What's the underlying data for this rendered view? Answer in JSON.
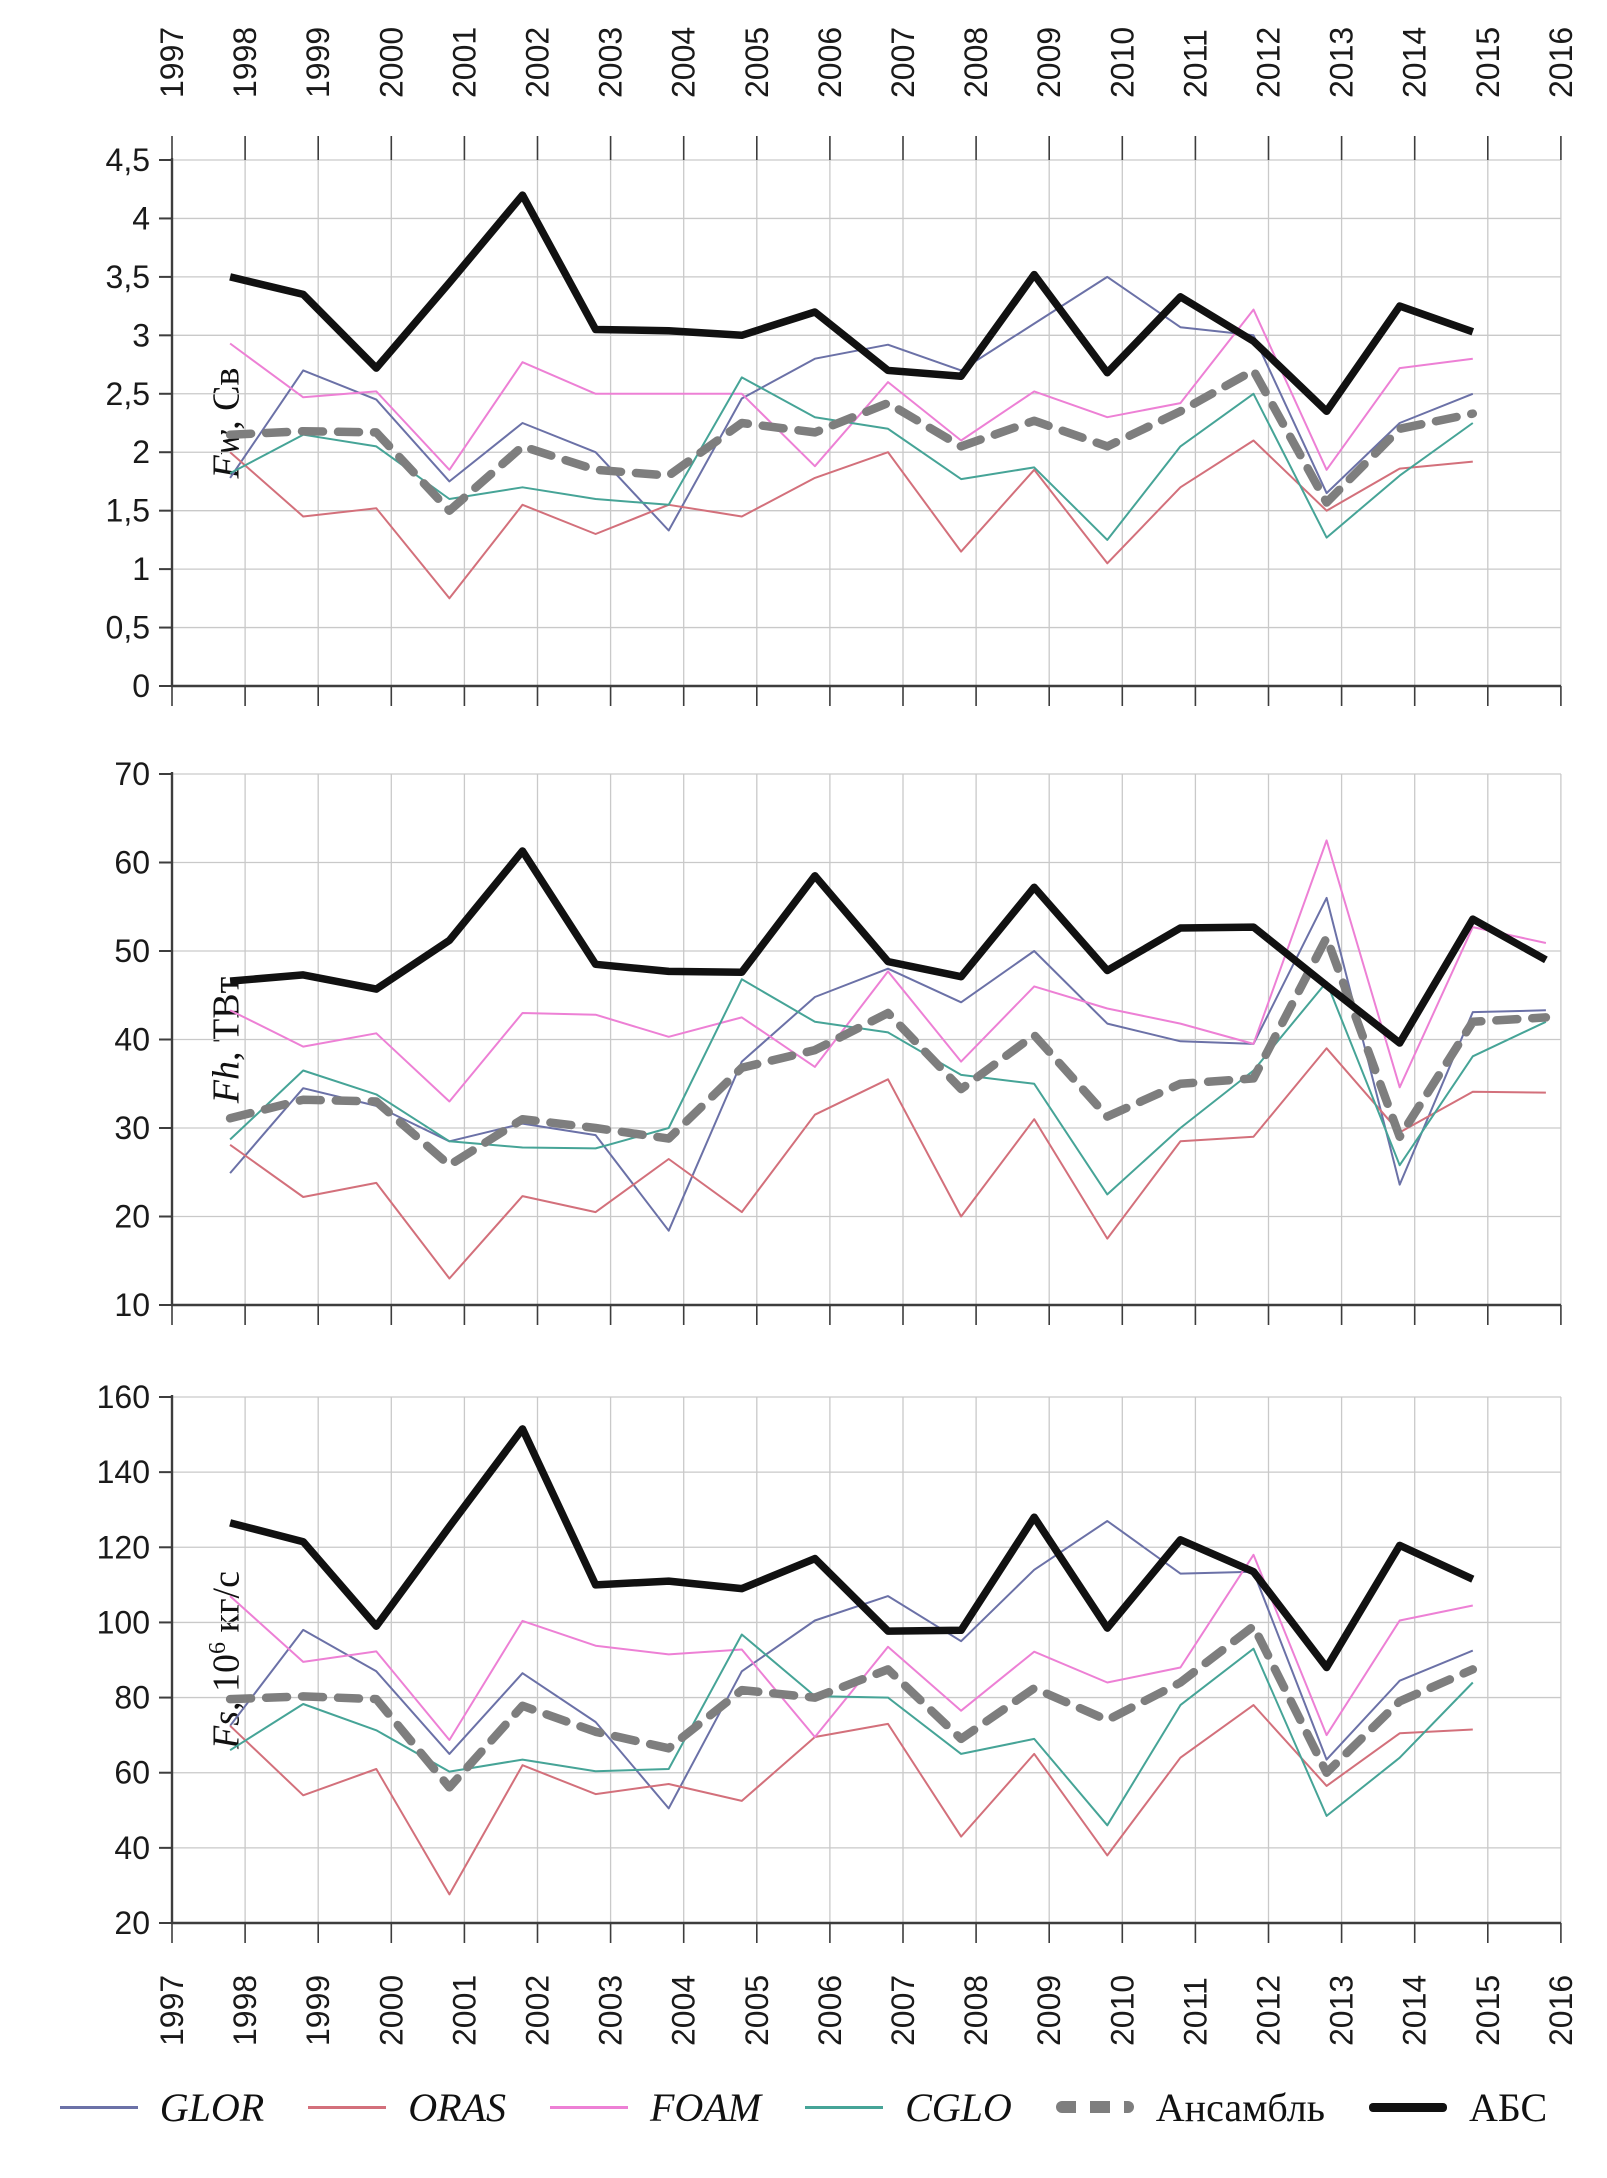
{
  "x_axis": {
    "labels": [
      "1997",
      "1998",
      "1999",
      "2000",
      "2001",
      "2002",
      "2003",
      "2004",
      "2005",
      "2006",
      "2007",
      "2008",
      "2009",
      "2010",
      "2011",
      "2012",
      "2013",
      "2014",
      "2015",
      "2016"
    ]
  },
  "legend": {
    "items": [
      {
        "label": "GLOR",
        "color": "#6b71a7",
        "style": "thin"
      },
      {
        "label": "ORAS",
        "color": "#d3707b",
        "style": "thin"
      },
      {
        "label": "FOAM",
        "color": "#ed80d5",
        "style": "thin"
      },
      {
        "label": "CGLO",
        "color": "#46a497",
        "style": "thin"
      },
      {
        "label": "Ансамбль",
        "color": "#7e7e7e",
        "style": "dashed"
      },
      {
        "label": "АБС",
        "color": "#111111",
        "style": "thick"
      }
    ]
  },
  "chart_data": [
    {
      "type": "line",
      "ylabel": "Fw, Св",
      "axis_title": {
        "f": "Fw",
        "pre": ", Св",
        "sup": "",
        "tail": ""
      },
      "ylim": [
        0,
        4.5
      ],
      "grid": true,
      "legend_position": "bottom-shared",
      "yticks": [
        {
          "label": "4,5",
          "value": 4.5
        },
        {
          "label": "4",
          "value": 4
        },
        {
          "label": "3,5",
          "value": 3.5
        },
        {
          "label": "3",
          "value": 3
        },
        {
          "label": "2,5",
          "value": 2.5
        },
        {
          "label": "2",
          "value": 2
        },
        {
          "label": "1,5",
          "value": 1.5
        },
        {
          "label": "1",
          "value": 1
        },
        {
          "label": "0,5",
          "value": 0.5
        },
        {
          "label": "0",
          "value": 0
        }
      ],
      "years": [
        1998,
        1999,
        2000,
        2001,
        2002,
        2003,
        2004,
        2005,
        2006,
        2007,
        2008,
        2009,
        2010,
        2011,
        2012,
        2013,
        2014,
        2015
      ],
      "series": [
        {
          "name": "GLOR",
          "color": "#6b71a7",
          "style": "thin",
          "values": [
            1.78,
            2.7,
            2.45,
            1.75,
            2.25,
            2.0,
            1.33,
            2.46,
            2.8,
            2.92,
            2.7,
            3.1,
            3.5,
            3.07,
            3.0,
            1.65,
            2.25,
            2.5
          ]
        },
        {
          "name": "ORAS",
          "color": "#d3707b",
          "style": "thin",
          "values": [
            2.0,
            1.45,
            1.52,
            0.75,
            1.55,
            1.3,
            1.55,
            1.45,
            1.78,
            2.0,
            1.15,
            1.85,
            1.05,
            1.7,
            2.1,
            1.5,
            1.86,
            1.92
          ]
        },
        {
          "name": "FOAM",
          "color": "#ed80d5",
          "style": "thin",
          "values": [
            2.93,
            2.47,
            2.52,
            1.85,
            2.77,
            2.5,
            2.5,
            2.5,
            1.88,
            2.6,
            2.1,
            2.52,
            2.3,
            2.42,
            3.22,
            1.85,
            2.72,
            2.8
          ]
        },
        {
          "name": "CGLO",
          "color": "#46a497",
          "style": "thin",
          "values": [
            1.82,
            2.15,
            2.05,
            1.6,
            1.7,
            1.6,
            1.55,
            2.64,
            2.3,
            2.2,
            1.77,
            1.87,
            1.25,
            2.05,
            2.5,
            1.27,
            1.8,
            2.25
          ]
        },
        {
          "name": "Ансамбль",
          "color": "#7e7e7e",
          "style": "dashed",
          "values": [
            2.15,
            2.18,
            2.17,
            1.5,
            2.05,
            1.85,
            1.8,
            2.25,
            2.17,
            2.42,
            2.05,
            2.27,
            2.05,
            2.35,
            2.7,
            1.57,
            2.2,
            2.33
          ]
        },
        {
          "name": "АБС",
          "color": "#111111",
          "style": "thick",
          "values": [
            3.5,
            3.35,
            2.72,
            3.45,
            4.2,
            3.05,
            3.04,
            3.0,
            3.2,
            2.7,
            2.65,
            3.52,
            2.68,
            3.33,
            2.95,
            2.35,
            3.25,
            3.03
          ]
        }
      ]
    },
    {
      "type": "line",
      "ylabel": "Fh, ТВт",
      "axis_title": {
        "f": "Fh",
        "pre": ", ТВт",
        "sup": "",
        "tail": ""
      },
      "ylim": [
        10,
        70
      ],
      "grid": true,
      "legend_position": "bottom-shared",
      "yticks": [
        {
          "label": "70",
          "value": 70
        },
        {
          "label": "60",
          "value": 60
        },
        {
          "label": "50",
          "value": 50
        },
        {
          "label": "40",
          "value": 40
        },
        {
          "label": "30",
          "value": 30
        },
        {
          "label": "20",
          "value": 20
        },
        {
          "label": "10",
          "value": 10
        }
      ],
      "years": [
        1998,
        1999,
        2000,
        2001,
        2002,
        2003,
        2004,
        2005,
        2006,
        2007,
        2008,
        2009,
        2010,
        2011,
        2012,
        2013,
        2014,
        2015,
        2016
      ],
      "series": [
        {
          "name": "GLOR",
          "color": "#6b71a7",
          "style": "thin",
          "values": [
            24.9,
            34.5,
            32.5,
            28.5,
            30.5,
            29.2,
            18.4,
            37.5,
            44.8,
            48.0,
            44.2,
            50.0,
            41.8,
            39.8,
            39.5,
            56.0,
            23.6,
            43.1,
            43.3
          ]
        },
        {
          "name": "ORAS",
          "color": "#d3707b",
          "style": "thin",
          "values": [
            28.1,
            22.2,
            23.8,
            13.0,
            22.3,
            20.5,
            26.5,
            20.5,
            31.5,
            35.5,
            20.0,
            31.0,
            17.5,
            28.5,
            29.0,
            39.0,
            29.5,
            34.1,
            34.0
          ]
        },
        {
          "name": "FOAM",
          "color": "#ed80d5",
          "style": "thin",
          "values": [
            43.3,
            39.2,
            40.7,
            33.0,
            43.0,
            42.8,
            40.3,
            42.5,
            36.9,
            47.7,
            37.5,
            46.0,
            43.5,
            41.8,
            39.5,
            62.5,
            34.6,
            52.7,
            50.9
          ]
        },
        {
          "name": "CGLO",
          "color": "#46a497",
          "style": "thin",
          "values": [
            28.7,
            36.5,
            33.8,
            28.5,
            27.8,
            27.7,
            30.0,
            46.8,
            42.0,
            40.8,
            36.0,
            35.0,
            22.5,
            30.0,
            36.5,
            46.5,
            25.8,
            38.1,
            42.0
          ]
        },
        {
          "name": "Ансамбль",
          "color": "#7e7e7e",
          "style": "dashed",
          "values": [
            31.1,
            33.2,
            33.0,
            25.8,
            31.0,
            30.0,
            28.8,
            36.8,
            38.8,
            43.0,
            34.4,
            40.5,
            31.3,
            35.0,
            35.6,
            51.5,
            29.0,
            42.0,
            42.5
          ]
        },
        {
          "name": "АБС",
          "color": "#111111",
          "style": "thick",
          "values": [
            46.6,
            47.3,
            45.7,
            51.2,
            61.3,
            48.5,
            47.7,
            47.6,
            58.5,
            48.8,
            47.1,
            57.2,
            47.8,
            52.6,
            52.7,
            46.1,
            39.6,
            53.6,
            49.0
          ]
        }
      ]
    },
    {
      "type": "line",
      "ylabel": "Fs, 10^6 кг/с",
      "axis_title": {
        "f": "Fs",
        "pre": ", 10",
        "sup": "6",
        "tail": " кг/с"
      },
      "ylim": [
        20,
        160
      ],
      "grid": true,
      "legend_position": "bottom-shared",
      "yticks": [
        {
          "label": "160",
          "value": 160
        },
        {
          "label": "140",
          "value": 140
        },
        {
          "label": "120",
          "value": 120
        },
        {
          "label": "100",
          "value": 100
        },
        {
          "label": "80",
          "value": 80
        },
        {
          "label": "60",
          "value": 60
        },
        {
          "label": "40",
          "value": 40
        },
        {
          "label": "20",
          "value": 20
        }
      ],
      "years": [
        1998,
        1999,
        2000,
        2001,
        2002,
        2003,
        2004,
        2005,
        2006,
        2007,
        2008,
        2009,
        2010,
        2011,
        2012,
        2013,
        2014,
        2015
      ],
      "series": [
        {
          "name": "GLOR",
          "color": "#6b71a7",
          "style": "thin",
          "values": [
            72.5,
            98,
            87,
            65,
            86.5,
            73.5,
            50.5,
            87,
            100.5,
            107,
            95,
            114,
            127,
            113,
            113.5,
            63.5,
            84.5,
            92.5
          ]
        },
        {
          "name": "ORAS",
          "color": "#d3707b",
          "style": "thin",
          "values": [
            72.5,
            54,
            61,
            27.6,
            62,
            54.3,
            57,
            52.5,
            69.5,
            73,
            43,
            65,
            38,
            64,
            78,
            56.5,
            70.5,
            71.5
          ]
        },
        {
          "name": "FOAM",
          "color": "#ed80d5",
          "style": "thin",
          "values": [
            107,
            89.5,
            92.3,
            68.7,
            100.4,
            93.8,
            91.5,
            92.8,
            69.5,
            93.5,
            76.5,
            92.2,
            84,
            88,
            118,
            70,
            100.5,
            104.5
          ]
        },
        {
          "name": "CGLO",
          "color": "#46a497",
          "style": "thin",
          "values": [
            66,
            78.3,
            71.3,
            60.3,
            63.5,
            60.4,
            61,
            96.8,
            80.4,
            80,
            65,
            69,
            46,
            78,
            93,
            48.5,
            64,
            84
          ]
        },
        {
          "name": "Ансамбль",
          "color": "#7e7e7e",
          "style": "dashed",
          "values": [
            79.6,
            80.3,
            79.6,
            56.1,
            77.8,
            70.9,
            66.5,
            82,
            80,
            87.5,
            69,
            82.5,
            74,
            84,
            99,
            60,
            79,
            87.5
          ]
        },
        {
          "name": "АБС",
          "color": "#111111",
          "style": "thick",
          "values": [
            126.5,
            121.5,
            99,
            125.5,
            151.5,
            110,
            111,
            109,
            117,
            97.7,
            97.9,
            128,
            98.5,
            122,
            113.5,
            88,
            120.5,
            111.5
          ]
        }
      ]
    }
  ]
}
